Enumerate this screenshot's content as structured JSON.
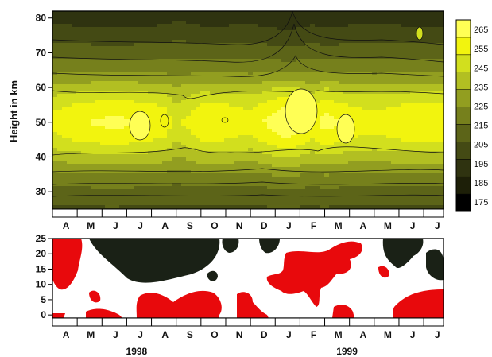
{
  "chart_data": [
    {
      "type": "heatmap",
      "ylabel": "Height in km",
      "yticks": [
        30,
        40,
        50,
        60,
        70,
        80
      ],
      "ylim": [
        25,
        82
      ],
      "months": [
        "A",
        "M",
        "J",
        "J",
        "A",
        "S",
        "O",
        "N",
        "D",
        "J",
        "F",
        "M",
        "A",
        "M",
        "J",
        "J"
      ],
      "colorbar_ticks": [
        175,
        185,
        195,
        205,
        215,
        225,
        235,
        245,
        255,
        265
      ],
      "colorbar_range": [
        170,
        270
      ],
      "colors": [
        "#000000",
        "#1d1f08",
        "#2f3310",
        "#444a14",
        "#5c6418",
        "#76801c",
        "#929e20",
        "#b2bf22",
        "#d2df1e",
        "#f2f40e",
        "#ffff55"
      ],
      "profile": [
        {
          "h": 25,
          "t": 205
        },
        {
          "h": 30,
          "t": 212
        },
        {
          "h": 35,
          "t": 222
        },
        {
          "h": 40,
          "t": 236
        },
        {
          "h": 45,
          "t": 248
        },
        {
          "h": 50,
          "t": 255
        },
        {
          "h": 55,
          "t": 248
        },
        {
          "h": 60,
          "t": 236
        },
        {
          "h": 65,
          "t": 222
        },
        {
          "h": 70,
          "t": 212
        },
        {
          "h": 75,
          "t": 203
        },
        {
          "h": 80,
          "t": 195
        },
        {
          "h": 82,
          "t": 192
        }
      ],
      "seasonal": [
        {
          "x": 0.0,
          "a": 1.0
        },
        {
          "x": 0.75,
          "a": 5.0
        },
        {
          "x": 2.5,
          "a": 10.0
        },
        {
          "x": 4.5,
          "a": 4.0
        },
        {
          "x": 5.0,
          "a": -6.0
        },
        {
          "x": 6.0,
          "a": 6.0
        },
        {
          "x": 7.0,
          "a": 5.0
        },
        {
          "x": 8.0,
          "a": 2.0
        },
        {
          "x": 9.5,
          "a": 16.0
        },
        {
          "x": 10.5,
          "a": 4.0
        },
        {
          "x": 11.0,
          "a": 11.0
        },
        {
          "x": 12.0,
          "a": 4.0
        },
        {
          "x": 13.0,
          "a": 2.0
        },
        {
          "x": 14.5,
          "a": 6.0
        },
        {
          "x": 16.0,
          "a": 6.0
        }
      ]
    },
    {
      "type": "heatmap",
      "yticks": [
        0,
        5,
        10,
        15,
        20,
        25
      ],
      "ylim": [
        -1,
        25
      ],
      "months": [
        "A",
        "M",
        "J",
        "J",
        "A",
        "S",
        "O",
        "N",
        "D",
        "J",
        "F",
        "M",
        "A",
        "M",
        "J",
        "J"
      ],
      "year_labels": [
        "1998",
        "1999"
      ],
      "colors": [
        "#e8090c",
        "#ffffff",
        "#1a2116"
      ]
    }
  ]
}
